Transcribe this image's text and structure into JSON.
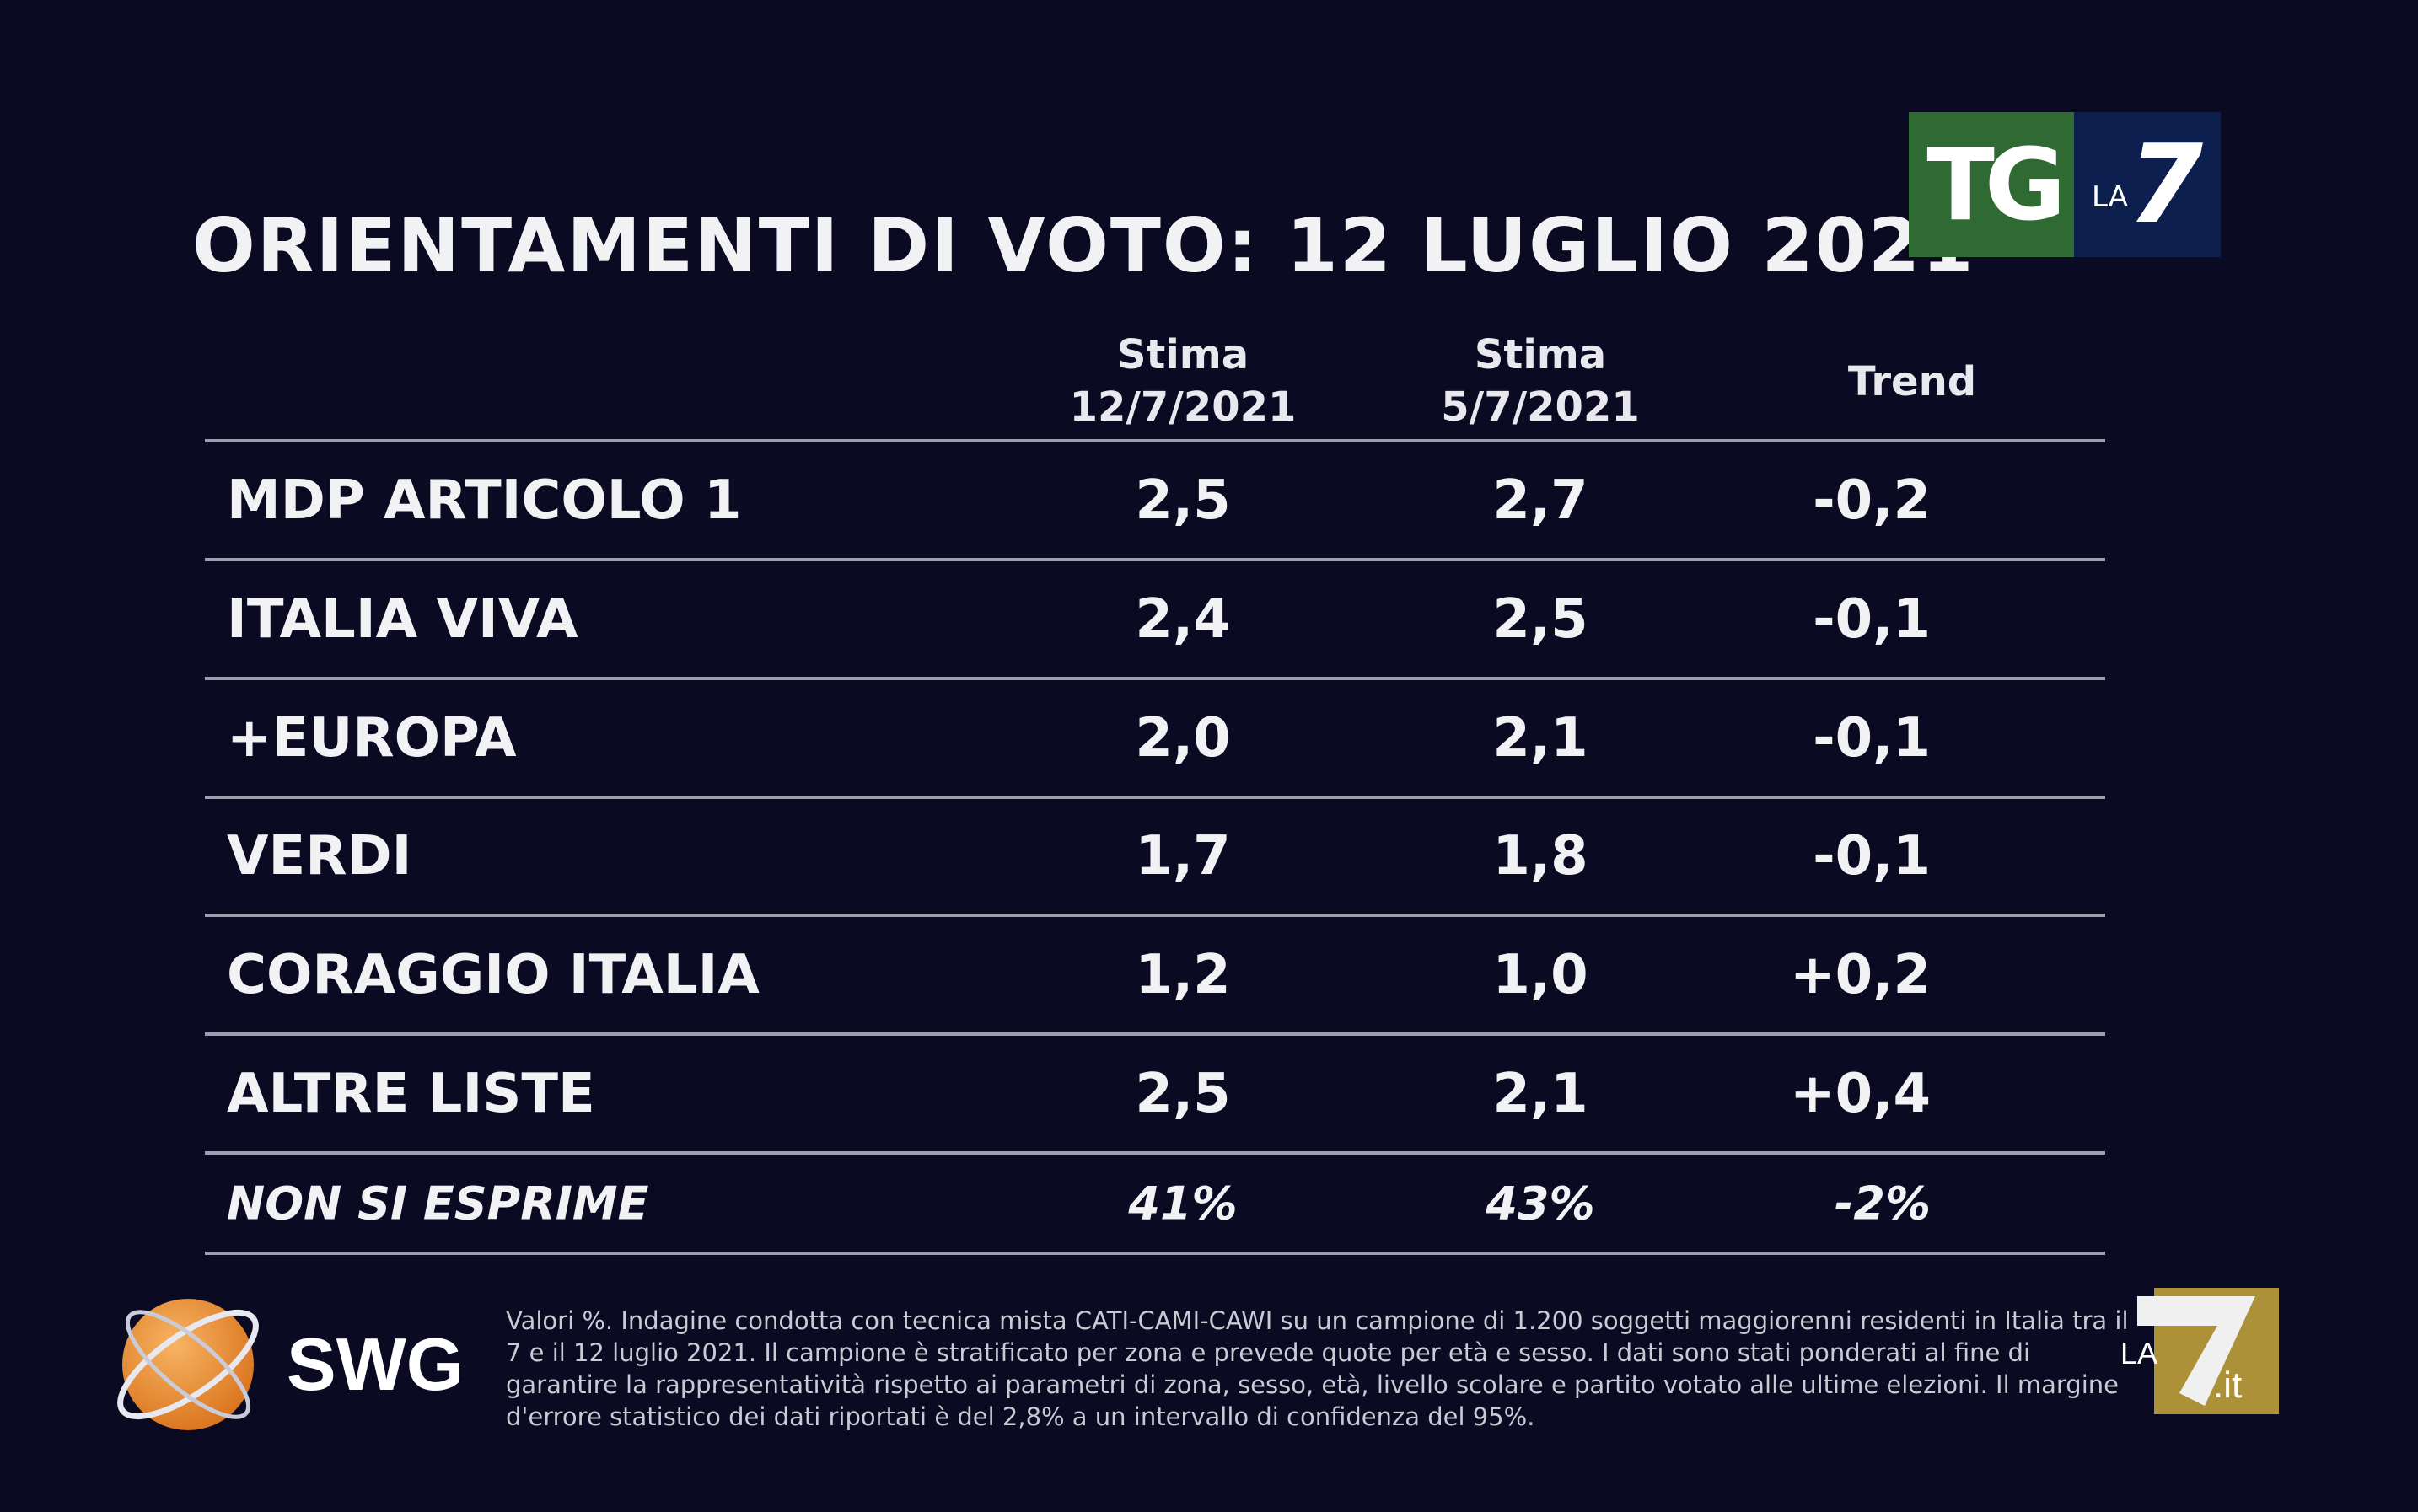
{
  "title": "ORIENTAMENTI DI VOTO: 12 LUGLIO 2021",
  "logo": {
    "tg": "TG",
    "la": "LA",
    "seven": "7"
  },
  "headers": {
    "col1": [
      "Stima",
      "12/7/2021"
    ],
    "col2": [
      "Stima",
      "5/7/2021"
    ],
    "col3": "Trend"
  },
  "rows": [
    {
      "party": "MDP ARTICOLO 1",
      "current": "2,5",
      "previous": "2,7",
      "trend": "-0,2"
    },
    {
      "party": "ITALIA VIVA",
      "current": "2,4",
      "previous": "2,5",
      "trend": "-0,1"
    },
    {
      "party": "+EUROPA",
      "current": "2,0",
      "previous": "2,1",
      "trend": "-0,1"
    },
    {
      "party": "VERDI",
      "current": "1,7",
      "previous": "1,8",
      "trend": "-0,1"
    },
    {
      "party": "CORAGGIO ITALIA",
      "current": "1,2",
      "previous": "1,0",
      "trend": "+0,2"
    },
    {
      "party": "ALTRE LISTE",
      "current": "2,5",
      "previous": "2,1",
      "trend": "+0,4"
    },
    {
      "party": "NON SI ESPRIME",
      "current": "41%",
      "previous": "43%",
      "trend": "-2%"
    }
  ],
  "swg_label": "SWG",
  "footnote": "Valori %. Indagine condotta con tecnica mista CATI-CAMI-CAWI su un campione di 1.200 soggetti maggiorenni residenti in Italia tra il 7 e il 12 luglio 2021. Il campione è stratificato per zona e prevede quote per età e sesso. I dati sono stati ponderati al fine di garantire la rappresentatività rispetto ai parametri di zona, sesso, età, livello scolare e partito votato alle ultime elezioni. Il margine d'errore statistico dei dati riportati è del 2,8% a un intervallo di confidenza del 95%.",
  "watermark": {
    "la": "LA",
    "seven": "7",
    "it": ".it"
  }
}
